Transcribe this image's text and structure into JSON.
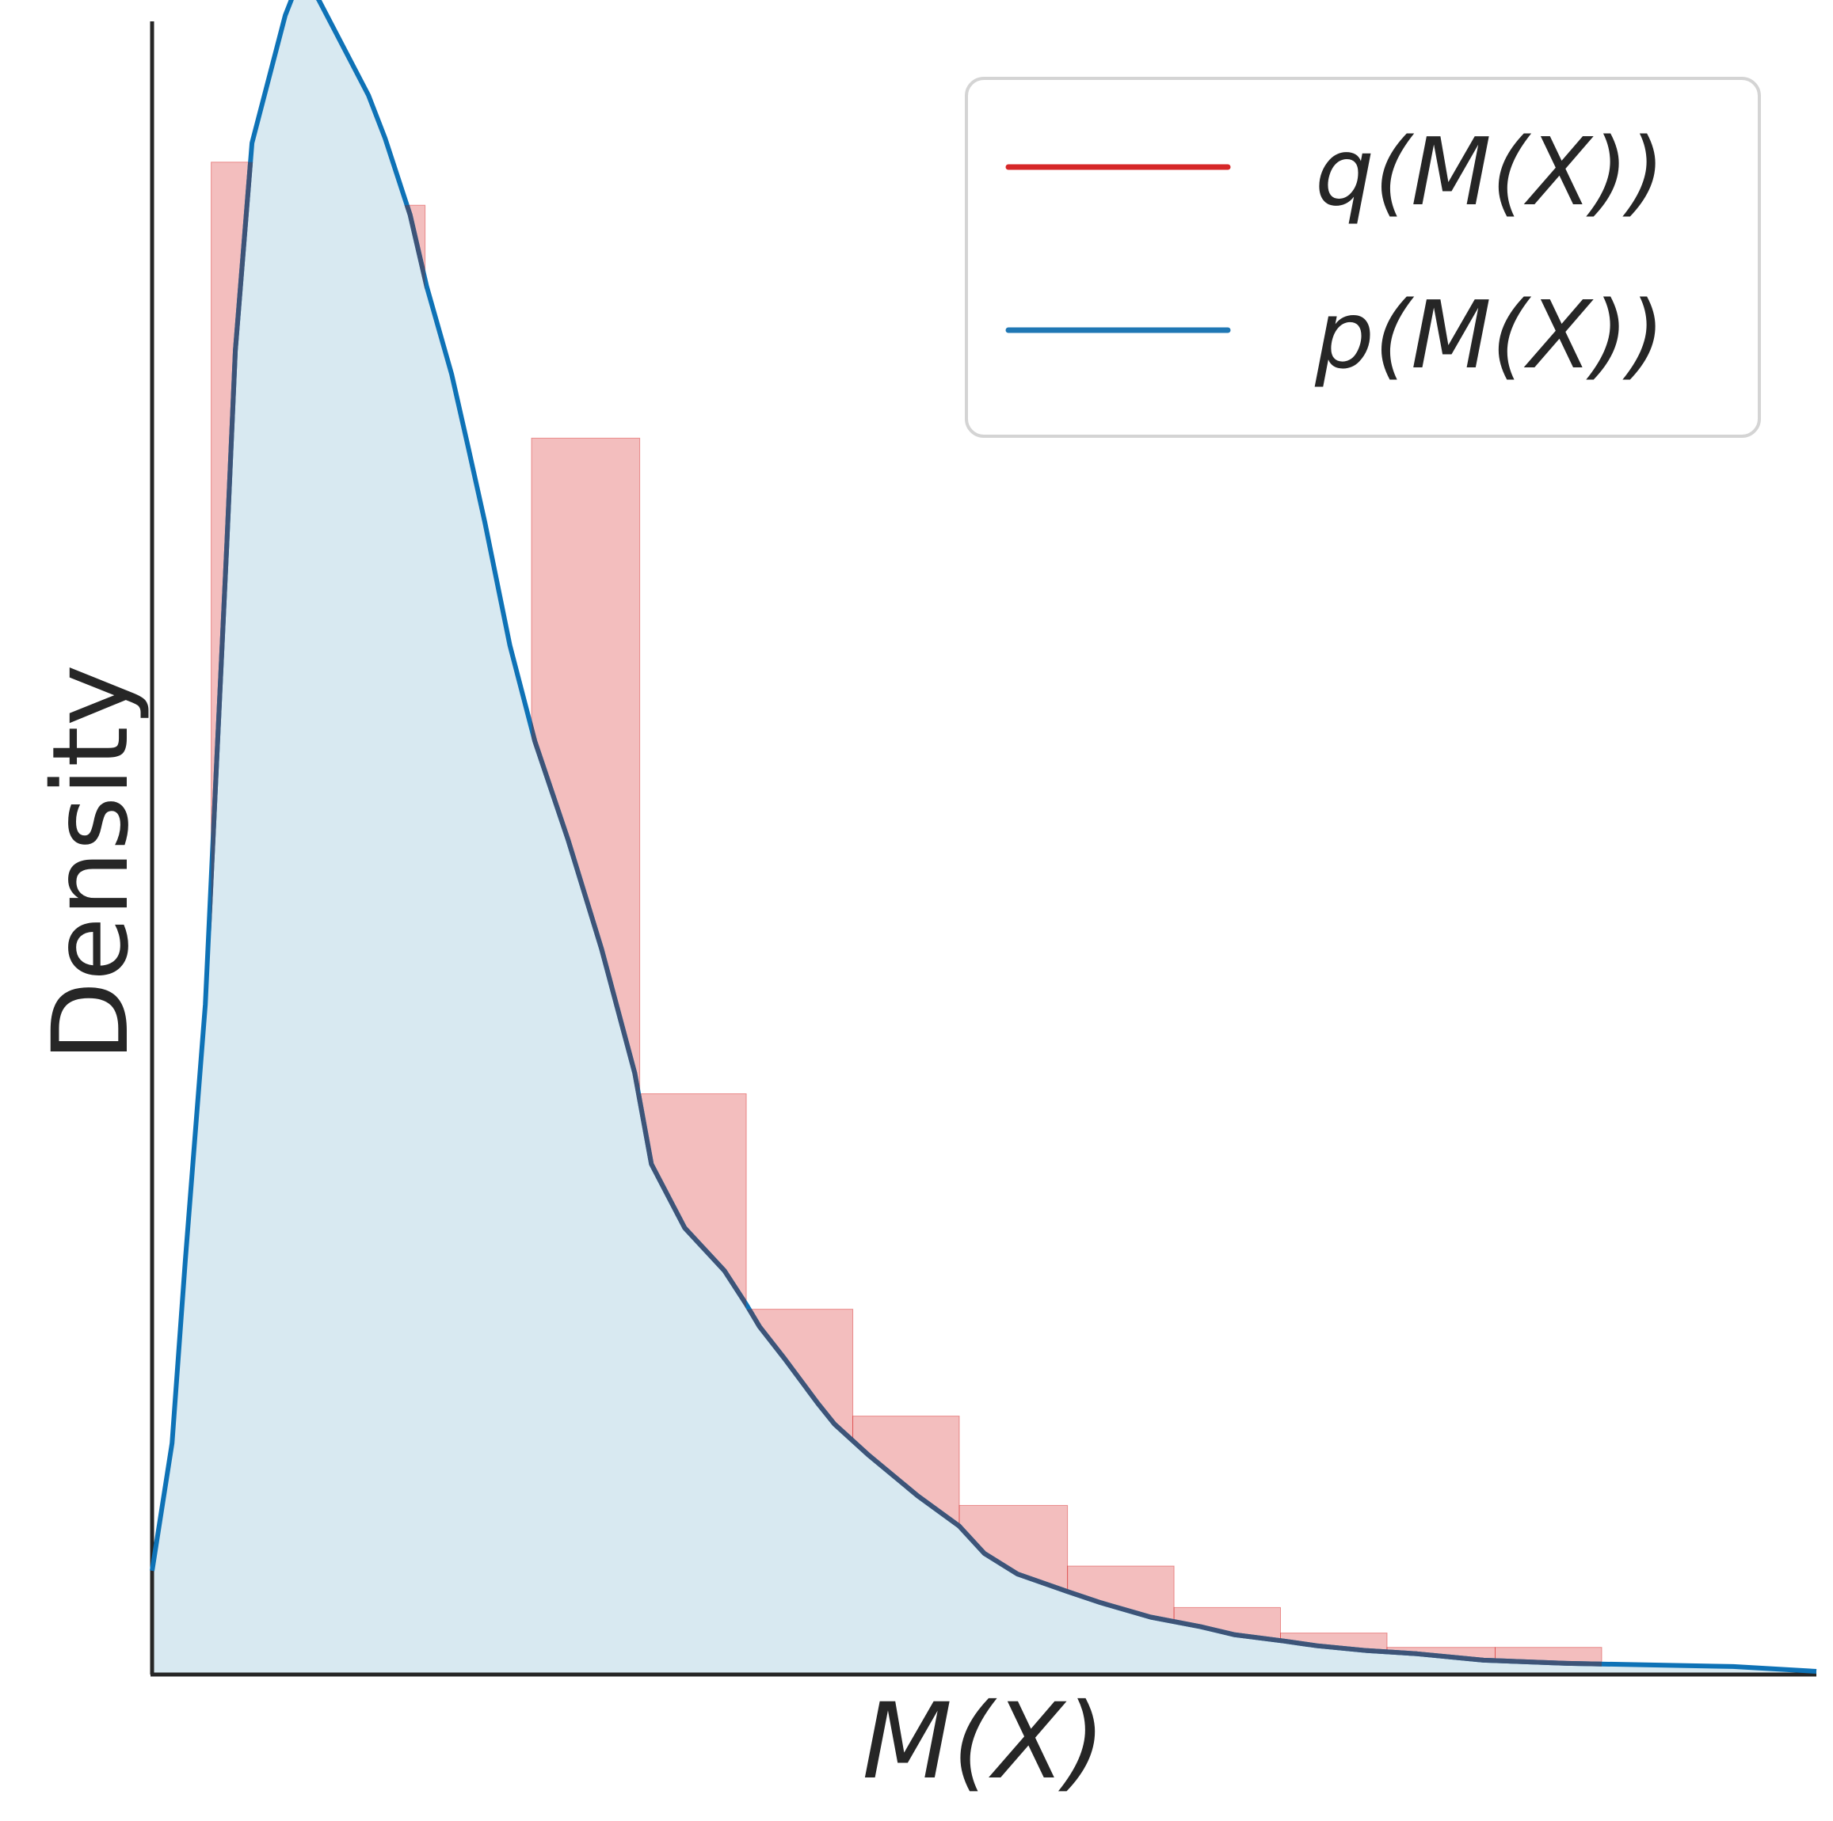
{
  "chart_data": {
    "type": "histogram+density",
    "title": "",
    "xlabel": "M(X)",
    "ylabel": "Density",
    "xticks": [],
    "yticks": [],
    "xlim": [
      0,
      1
    ],
    "ylim": [
      0,
      1
    ],
    "grid": false,
    "legend": {
      "placement": "top-right"
    },
    "series": [
      {
        "name": "q(M(X))",
        "kind": "histogram",
        "color": "#d62728",
        "fill_color": "#f0bbbd",
        "bin_edges": [
          0.0,
          0.0355,
          0.1,
          0.164,
          0.228,
          0.293,
          0.357,
          0.421,
          0.485,
          0.55,
          0.614,
          0.678,
          0.742,
          0.807,
          0.871
        ],
        "values": [
          0.044,
          0.948,
          0.921,
          0.544,
          0.775,
          0.364,
          0.229,
          0.162,
          0.106,
          0.068,
          0.042,
          0.026,
          0.017,
          0.017
        ]
      },
      {
        "name": "p(M(X))",
        "kind": "kde",
        "color": "#1f77b4",
        "fill_color": "#d8e9f1",
        "x": [
          0.0,
          0.012,
          0.02,
          0.032,
          0.045,
          0.05,
          0.06,
          0.07,
          0.08,
          0.086,
          0.095,
          0.0905,
          0.1,
          0.11,
          0.13,
          0.14,
          0.155,
          0.165,
          0.18,
          0.19,
          0.2,
          0.215,
          0.23,
          0.25,
          0.27,
          0.29,
          0.3,
          0.32,
          0.344,
          0.357,
          0.365,
          0.38,
          0.4,
          0.41,
          0.43,
          0.46,
          0.485,
          0.5,
          0.52,
          0.55,
          0.57,
          0.6,
          0.63,
          0.65,
          0.68,
          0.7,
          0.73,
          0.76,
          0.8,
          0.85,
          0.9,
          0.95,
          1.0
        ],
        "y": [
          0.065,
          0.145,
          0.26,
          0.42,
          0.71,
          0.83,
          0.96,
          1.0,
          1.04,
          1.056,
          1.062,
          1.061,
          1.05,
          1.03,
          0.99,
          0.963,
          0.915,
          0.87,
          0.815,
          0.769,
          0.722,
          0.645,
          0.585,
          0.523,
          0.455,
          0.377,
          0.32,
          0.28,
          0.253,
          0.232,
          0.218,
          0.198,
          0.17,
          0.157,
          0.138,
          0.112,
          0.093,
          0.076,
          0.063,
          0.052,
          0.045,
          0.036,
          0.03,
          0.025,
          0.021,
          0.018,
          0.015,
          0.013,
          0.009,
          0.007,
          0.006,
          0.005,
          0.002
        ]
      }
    ]
  }
}
